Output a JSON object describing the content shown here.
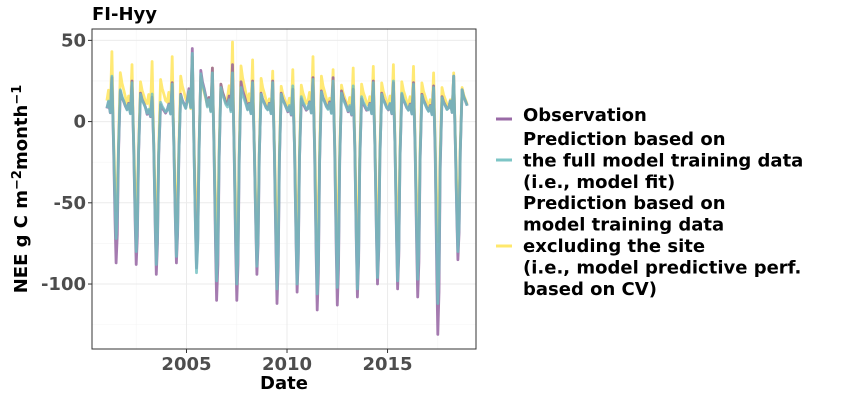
{
  "chart_data": {
    "type": "line",
    "title": "FI-Hyy",
    "xlabel": "Date",
    "ylabel": "NEE g C m",
    "ylabel_sup1": "−2",
    "ylabel_mid": "month",
    "ylabel_sup2": "−1",
    "xlim": [
      2000.3,
      2019.4
    ],
    "ylim": [
      -140,
      57
    ],
    "x_ticks": [
      2005,
      2010,
      2015
    ],
    "x_tick_labels": [
      "2005",
      "2010",
      "2015"
    ],
    "y_ticks": [
      -100,
      -50,
      0,
      50
    ],
    "y_tick_labels": [
      "-100",
      "-50",
      "0",
      "50"
    ],
    "grid": true,
    "legend_position": "right",
    "legend": [
      {
        "lines": [
          "Observation"
        ],
        "color": "#8e5a9c"
      },
      {
        "lines": [
          "Prediction based on",
          "the full model training data",
          "(i.e., model fit)"
        ],
        "color": "#6fbfc0"
      },
      {
        "lines": [
          "Prediction based on",
          "model training data",
          "excluding the site",
          "(i.e., model predictive perf.",
          " based on CV)"
        ],
        "color": "#ffe55c"
      }
    ],
    "years": [
      2001,
      2002,
      2003,
      2004,
      2005,
      2006,
      2007,
      2008,
      2009,
      2010,
      2011,
      2012,
      2013,
      2014,
      2015,
      2016,
      2017,
      2018
    ],
    "series": [
      {
        "name": "Observation",
        "color": "#8e5a9c",
        "min": [
          -87,
          -88,
          -94,
          -87,
          -90,
          -110,
          -110,
          -94,
          -112,
          -105,
          -116,
          -113,
          -108,
          -100,
          -103,
          -108,
          -131,
          -85
        ],
        "peak": [
          27,
          25,
          15,
          24,
          45,
          33,
          35,
          25,
          25,
          20,
          27,
          27,
          20,
          25,
          24,
          24,
          22,
          28
        ]
      },
      {
        "name": "Prediction based on the full model training data (i.e., model fit)",
        "color": "#6fbfc0",
        "min": [
          -72,
          -80,
          -88,
          -83,
          -93,
          -98,
          -100,
          -89,
          -103,
          -100,
          -106,
          -102,
          -103,
          -96,
          -98,
          -97,
          -112,
          -80
        ],
        "peak": [
          28,
          24,
          17,
          23,
          42,
          30,
          30,
          24,
          24,
          22,
          26,
          25,
          22,
          24,
          25,
          23,
          21,
          28
        ]
      },
      {
        "name": "Prediction based on model training data excluding the site (i.e., model predictive perf. based on CV)",
        "color": "#ffe55c",
        "min": [
          -55,
          -60,
          -68,
          -62,
          -66,
          -72,
          -76,
          -72,
          -75,
          -72,
          -73,
          -72,
          -75,
          -72,
          -73,
          -72,
          -74,
          -60
        ],
        "peak": [
          43,
          35,
          37,
          40,
          40,
          33,
          49,
          38,
          31,
          32,
          40,
          32,
          33,
          34,
          35,
          34,
          30,
          30
        ]
      }
    ]
  }
}
